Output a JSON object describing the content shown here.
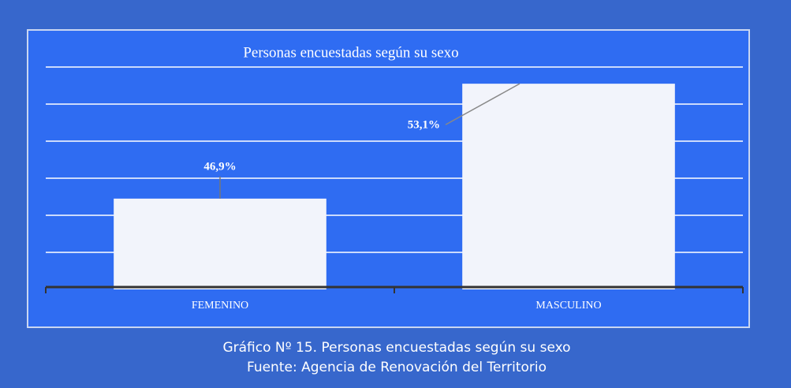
{
  "chart_data": {
    "type": "bar",
    "title": "Personas encuestadas según su sexo",
    "categories": [
      "FEMENINO",
      "MASCULINO"
    ],
    "values": [
      46.9,
      53.1
    ],
    "value_labels": [
      "46,9%",
      "53,1%"
    ],
    "color": "#f2f4fb",
    "ylim": [
      42,
      54
    ],
    "yticks": [
      44,
      46,
      48,
      50,
      52,
      54
    ],
    "grid": true,
    "caption": "Gráfico Nº 15. Personas encuestadas según su sexo",
    "source": "Fuente: Agencia de Renovación del Territorio"
  }
}
